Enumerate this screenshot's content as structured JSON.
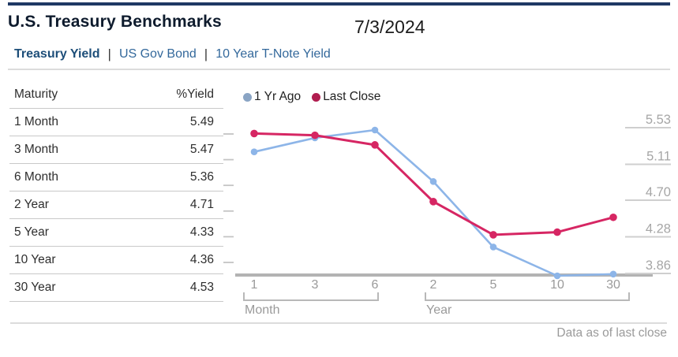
{
  "header": {
    "title": "U.S. Treasury Benchmarks",
    "date": "7/3/2024"
  },
  "tab_separator": "|",
  "tabs": [
    {
      "label": "Treasury Yield",
      "active": true
    },
    {
      "label": "US Gov Bond",
      "active": false
    },
    {
      "label": "10 Year T-Note Yield",
      "active": false
    }
  ],
  "table": {
    "headers": [
      "Maturity",
      "%Yield"
    ],
    "rows": [
      [
        "1 Month",
        "5.49"
      ],
      [
        "3 Month",
        "5.47"
      ],
      [
        "6 Month",
        "5.36"
      ],
      [
        "2 Year",
        "4.71"
      ],
      [
        "5 Year",
        "4.33"
      ],
      [
        "10 Year",
        "4.36"
      ],
      [
        "30 Year",
        "4.53"
      ]
    ]
  },
  "legend": [
    {
      "label": "1 Yr Ago",
      "color": "#8aa4c4"
    },
    {
      "label": "Last Close",
      "color": "#b01d4f"
    }
  ],
  "footer": {
    "note": "Data as of last close"
  },
  "colors": {
    "accent_navy": "#1f3864",
    "tab_active": "#1d4e79",
    "tab_inactive": "#33689b",
    "axis_gray": "#9a9a9a",
    "baseline_gray": "#b3b3b3",
    "series_blue": "#8db5e8",
    "series_red": "#d62663"
  },
  "chart_data": {
    "type": "line",
    "categories": [
      "1 Month",
      "3 Month",
      "6 Month",
      "2 Year",
      "5 Year",
      "10 Year",
      "30 Year"
    ],
    "x_tick_labels": [
      "1",
      "3",
      "6",
      "2",
      "5",
      "10",
      "30"
    ],
    "x_group_labels": [
      {
        "label": "Month",
        "span": [
          0,
          2
        ]
      },
      {
        "label": "Year",
        "span": [
          3,
          6
        ]
      }
    ],
    "y_axis_labels": [
      "5.53",
      "5.11",
      "4.70",
      "4.28",
      "3.86"
    ],
    "ylim": [
      3.86,
      5.53
    ],
    "grid": false,
    "legend_position": "top",
    "series": [
      {
        "name": "1 Yr Ago",
        "color": "#8db5e8",
        "values": [
          5.28,
          5.44,
          5.53,
          4.94,
          4.19,
          3.86,
          3.88
        ]
      },
      {
        "name": "Last Close",
        "color": "#d62663",
        "values": [
          5.49,
          5.47,
          5.36,
          4.71,
          4.33,
          4.36,
          4.53
        ]
      }
    ]
  }
}
